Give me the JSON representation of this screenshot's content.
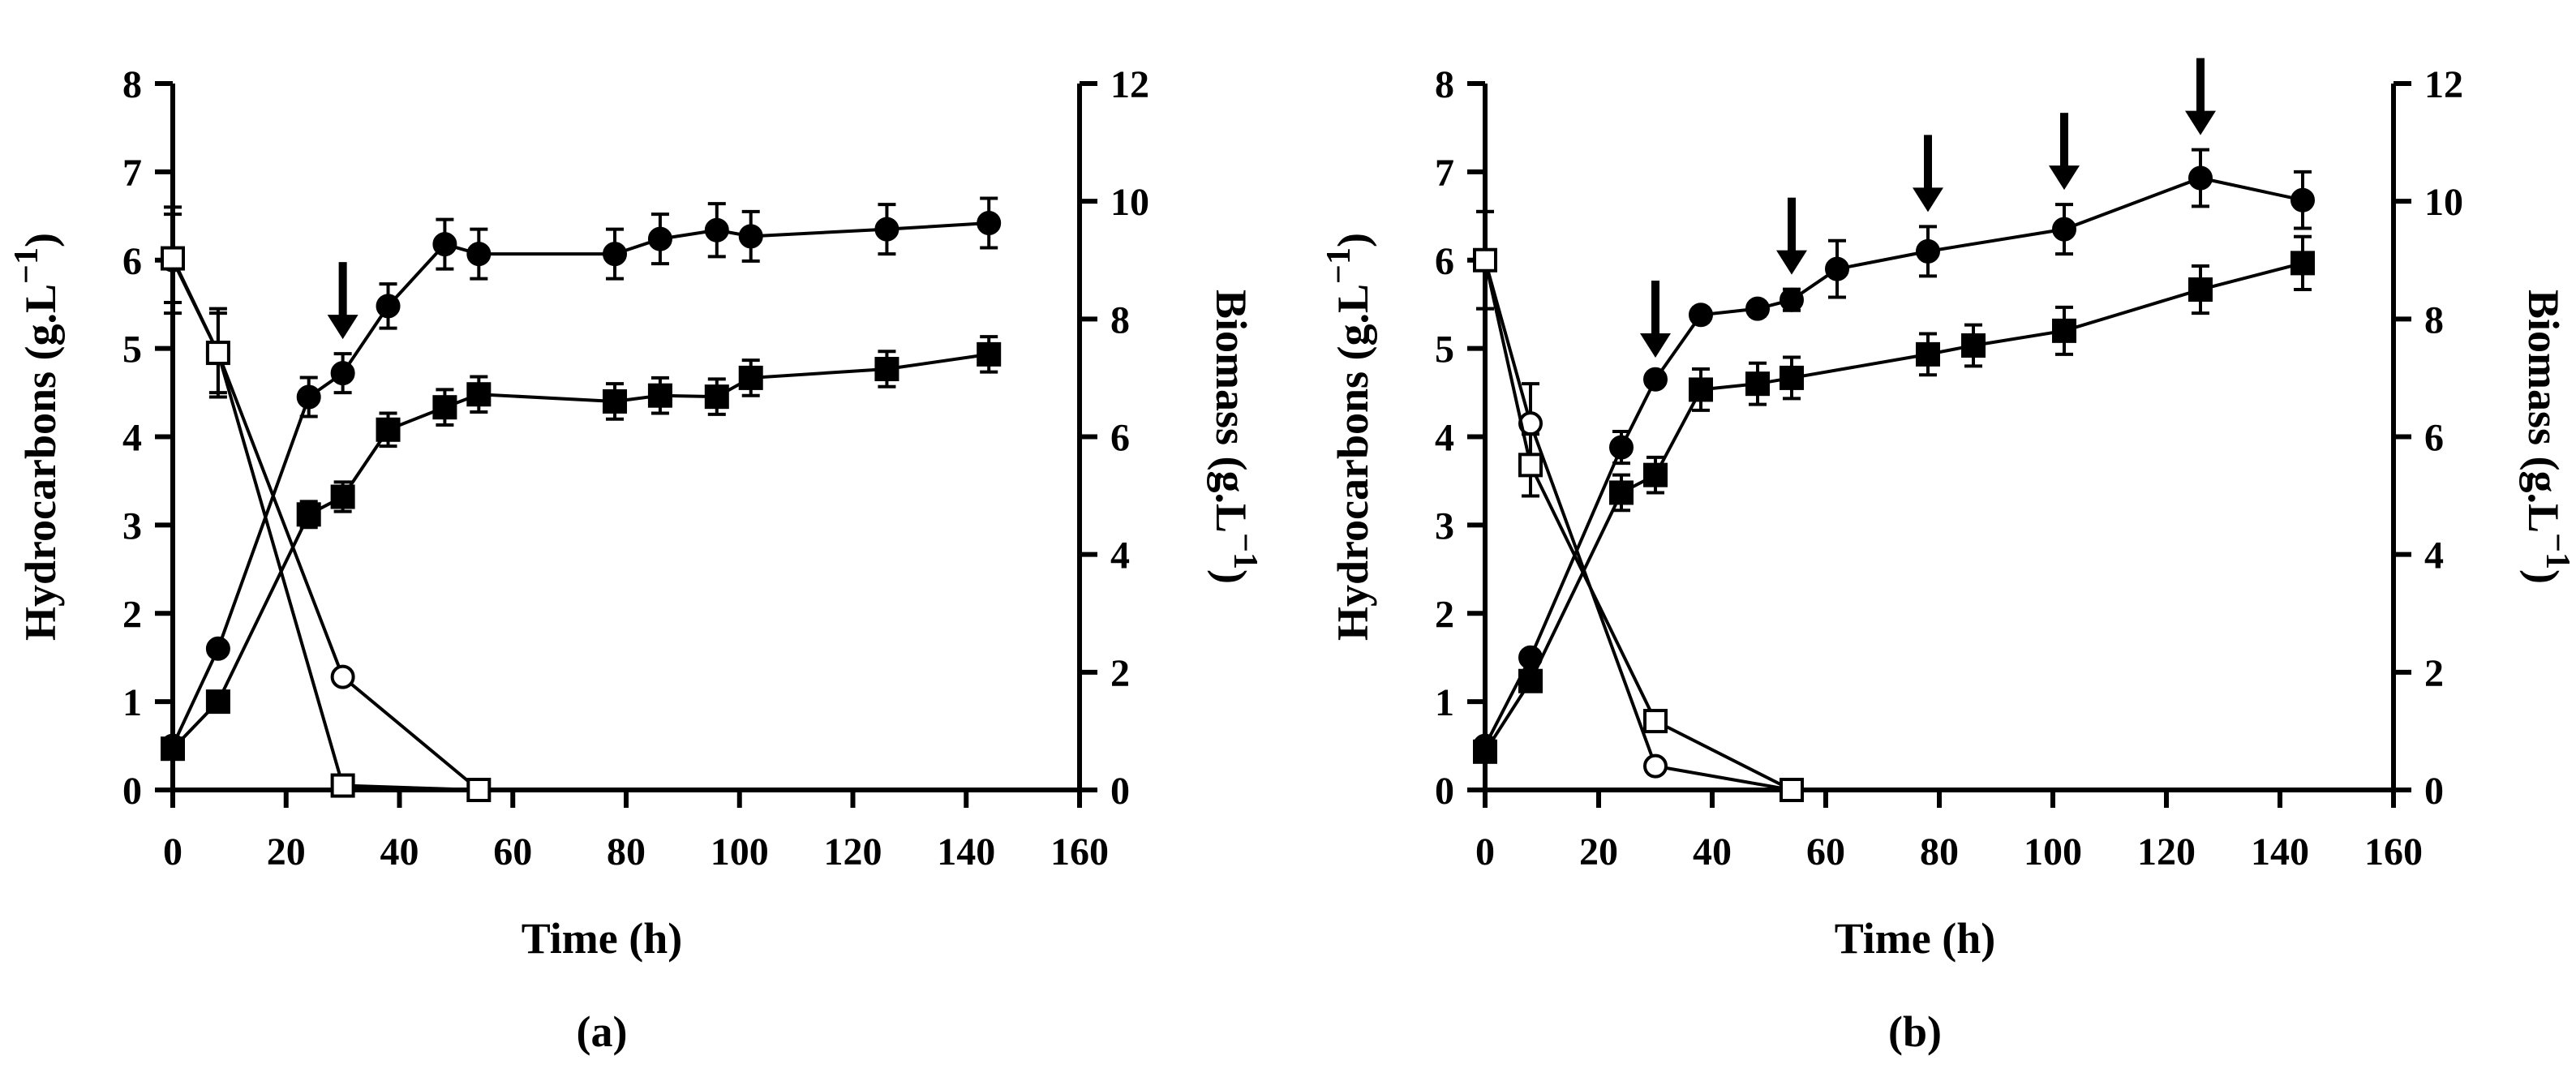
{
  "chart_data": [
    {
      "type": "line",
      "panel_label": "(a)",
      "xlabel": "Time (h)",
      "ylabel_left": "Hydrocarbons (g.L",
      "ylabel_left_sup": "−1",
      "ylabel_left_close": ")",
      "ylabel_right": "Biomass (g.L",
      "ylabel_right_sup": "−1",
      "ylabel_right_close": ")",
      "xlim": [
        0,
        160
      ],
      "xticks": [
        "0",
        "20",
        "40",
        "60",
        "80",
        "100",
        "120",
        "140",
        "160"
      ],
      "ylim_left": [
        0,
        8
      ],
      "yticks_left": [
        "0",
        "1",
        "2",
        "3",
        "4",
        "5",
        "6",
        "7",
        "8"
      ],
      "ylim_right": [
        0,
        12
      ],
      "yticks_right": [
        "0",
        "2",
        "4",
        "6",
        "8",
        "10",
        "12"
      ],
      "feed_arrows_x": [
        30
      ],
      "series": [
        {
          "name": "filled-circle",
          "axis": "left",
          "marker": "circle",
          "filled": true,
          "x": [
            0,
            8,
            24,
            30,
            38,
            48,
            54,
            78,
            86,
            96,
            102,
            126,
            144
          ],
          "y": [
            0.5,
            1.6,
            4.45,
            4.72,
            5.48,
            6.18,
            6.07,
            6.07,
            6.24,
            6.34,
            6.27,
            6.35,
            6.42
          ],
          "err": [
            0.05,
            0.05,
            0.22,
            0.22,
            0.25,
            0.28,
            0.28,
            0.28,
            0.28,
            0.3,
            0.28,
            0.28,
            0.28
          ]
        },
        {
          "name": "filled-square",
          "axis": "right",
          "marker": "square",
          "filled": true,
          "x": [
            0,
            8,
            24,
            30,
            38,
            48,
            54,
            78,
            86,
            96,
            102,
            126,
            144
          ],
          "y": [
            0.7,
            1.5,
            4.68,
            4.98,
            6.12,
            6.5,
            6.72,
            6.6,
            6.7,
            6.68,
            7.0,
            7.15,
            7.4
          ],
          "err": [
            0.08,
            0.08,
            0.22,
            0.25,
            0.28,
            0.3,
            0.3,
            0.3,
            0.3,
            0.3,
            0.3,
            0.3,
            0.3
          ]
        },
        {
          "name": "open-circle",
          "axis": "left",
          "marker": "circle",
          "filled": false,
          "x": [
            0,
            8,
            30,
            54
          ],
          "y": [
            6.0,
            4.95,
            1.28,
            0.0
          ],
          "err": [
            0.6,
            0.45,
            0,
            0
          ]
        },
        {
          "name": "open-square",
          "axis": "left",
          "marker": "square",
          "filled": false,
          "x": [
            0,
            8,
            30,
            54
          ],
          "y": [
            6.02,
            4.95,
            0.05,
            0.0
          ],
          "err": [
            0.5,
            0.5,
            0,
            0
          ]
        }
      ]
    },
    {
      "type": "line",
      "panel_label": "(b)",
      "xlabel": "Time (h)",
      "ylabel_left": "Hydrocarbons (g.L",
      "ylabel_left_sup": "−1",
      "ylabel_left_close": ")",
      "ylabel_right": "Biomass (g.L",
      "ylabel_right_sup": "−1",
      "ylabel_right_close": ")",
      "xlim": [
        0,
        160
      ],
      "xticks": [
        "0",
        "20",
        "40",
        "60",
        "80",
        "100",
        "120",
        "140",
        "160"
      ],
      "ylim_left": [
        0,
        8
      ],
      "yticks_left": [
        "0",
        "1",
        "2",
        "3",
        "4",
        "5",
        "6",
        "7",
        "8"
      ],
      "ylim_right": [
        0,
        12
      ],
      "yticks_right": [
        "0",
        "2",
        "4",
        "6",
        "8",
        "10",
        "12"
      ],
      "feed_arrows_x": [
        30,
        54,
        78,
        102,
        126
      ],
      "series": [
        {
          "name": "filled-circle",
          "axis": "left",
          "marker": "circle",
          "filled": true,
          "x": [
            0,
            8,
            24,
            30,
            38,
            48,
            54,
            62,
            78,
            102,
            126,
            144
          ],
          "y": [
            0.5,
            1.5,
            3.88,
            4.65,
            5.38,
            5.45,
            5.55,
            5.9,
            6.1,
            6.35,
            6.93,
            6.68
          ],
          "err": [
            0.05,
            0.05,
            0.18,
            0.08,
            0.08,
            0.08,
            0.12,
            0.32,
            0.28,
            0.28,
            0.32,
            0.32
          ]
        },
        {
          "name": "filled-square",
          "axis": "right",
          "marker": "square",
          "filled": true,
          "x": [
            0,
            8,
            24,
            30,
            38,
            48,
            54,
            78,
            86,
            102,
            126,
            144
          ],
          "y": [
            0.65,
            1.85,
            5.05,
            5.35,
            6.8,
            6.9,
            7.0,
            7.4,
            7.55,
            7.8,
            8.5,
            8.95
          ],
          "err": [
            0.08,
            0.1,
            0.3,
            0.3,
            0.35,
            0.35,
            0.35,
            0.35,
            0.35,
            0.4,
            0.4,
            0.45
          ]
        },
        {
          "name": "open-circle",
          "axis": "left",
          "marker": "circle",
          "filled": false,
          "x": [
            0,
            8,
            30,
            54
          ],
          "y": [
            6.0,
            4.15,
            0.27,
            0.0
          ],
          "err": [
            0.55,
            0.45,
            0,
            0
          ]
        },
        {
          "name": "open-square",
          "axis": "left",
          "marker": "square",
          "filled": false,
          "x": [
            0,
            8,
            30,
            54
          ],
          "y": [
            6.0,
            3.68,
            0.78,
            0.0
          ],
          "err": [
            0.55,
            0.35,
            0,
            0
          ]
        }
      ]
    }
  ]
}
